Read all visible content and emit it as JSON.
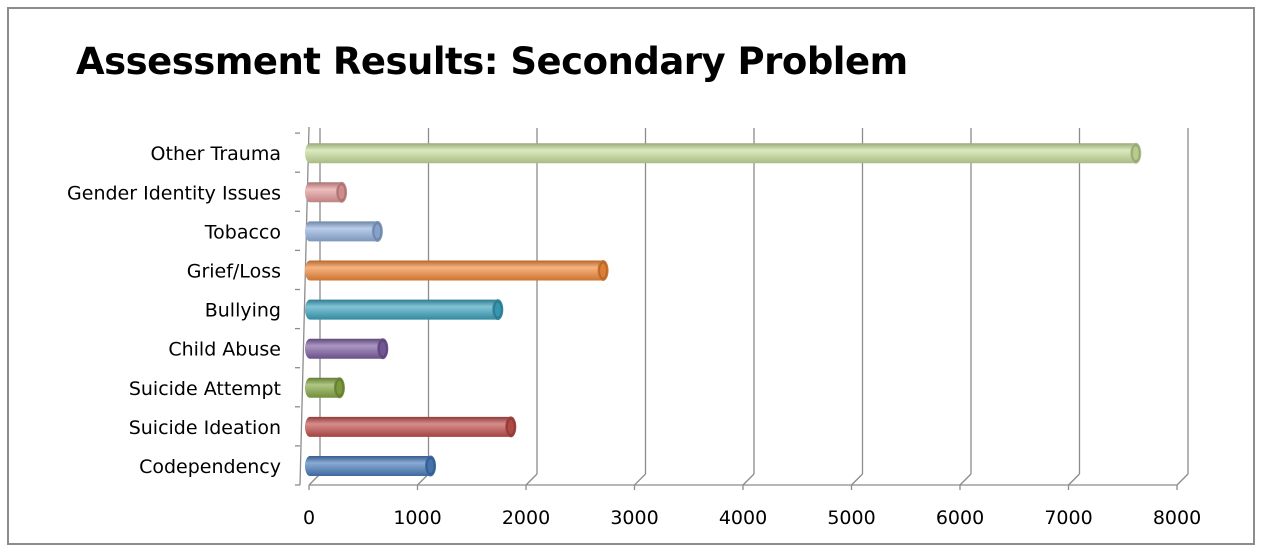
{
  "chart_data": {
    "type": "bar",
    "orientation": "horizontal",
    "title": "Assessment Results:  Secondary Problem",
    "xlabel": "",
    "ylabel": "",
    "categories": [
      "Codependency",
      "Suicide Ideation",
      "Suicide Attempt",
      "Child Abuse",
      "Bullying",
      "Grief/Loss",
      "Tobacco",
      "Gender Identity Issues",
      "Other Trauma"
    ],
    "values": [
      1120,
      1860,
      280,
      680,
      1740,
      2710,
      630,
      300,
      7620
    ],
    "colors": [
      "#4a7dbd",
      "#c0504d",
      "#86a844",
      "#7e5fa3",
      "#3da4bf",
      "#f28a3a",
      "#94b2de",
      "#e39a9a",
      "#c9df9c"
    ],
    "xlim": [
      0,
      8000
    ],
    "xticks": [
      "0",
      "1000",
      "2000",
      "3000",
      "4000",
      "5000",
      "6000",
      "7000",
      "8000"
    ],
    "grid": true,
    "legend": "none",
    "style": "3d-cylinder"
  }
}
